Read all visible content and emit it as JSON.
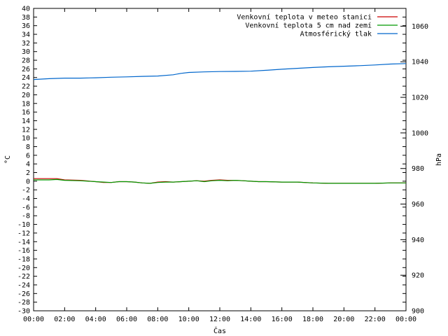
{
  "chart_data": {
    "type": "line",
    "title": "",
    "xlabel": "Čas",
    "ylabel_left": "°C",
    "ylabel_right": "hPa",
    "ylim_left": [
      -30,
      40
    ],
    "ylim_right": [
      900,
      1070
    ],
    "y_left_step": 2,
    "y_right_ticks": [
      900,
      920,
      940,
      960,
      980,
      1000,
      1020,
      1040,
      1060
    ],
    "x_hours": [
      0,
      24
    ],
    "x_tick_labels": [
      "00:00",
      "02:00",
      "04:00",
      "06:00",
      "08:00",
      "10:00",
      "12:00",
      "14:00",
      "16:00",
      "18:00",
      "20:00",
      "22:00",
      "00:00"
    ],
    "legend_position": "top-right",
    "grid": false,
    "series": [
      {
        "name": "Venkovní teplota v meteo stanici",
        "axis": "left",
        "color": "#cc0000",
        "points": [
          [
            0,
            0.6
          ],
          [
            1,
            0.6
          ],
          [
            1.5,
            0.6
          ],
          [
            2,
            0.3
          ],
          [
            3,
            0.2
          ],
          [
            4,
            -0.1
          ],
          [
            4.5,
            -0.3
          ],
          [
            5,
            -0.3
          ],
          [
            5.5,
            -0.1
          ],
          [
            6,
            -0.1
          ],
          [
            6.5,
            -0.2
          ],
          [
            7,
            -0.4
          ],
          [
            7.5,
            -0.5
          ],
          [
            8,
            -0.2
          ],
          [
            8.5,
            -0.1
          ],
          [
            9,
            -0.2
          ],
          [
            9.5,
            -0.1
          ],
          [
            10,
            0
          ],
          [
            10.5,
            0.1
          ],
          [
            11,
            0
          ],
          [
            11.5,
            0.2
          ],
          [
            12,
            0.3
          ],
          [
            12.5,
            0.2
          ],
          [
            13,
            0.2
          ],
          [
            13.5,
            0.1
          ],
          [
            14,
            0
          ],
          [
            14.5,
            -0.1
          ],
          [
            15,
            -0.1
          ],
          [
            16,
            -0.2
          ],
          [
            17,
            -0.2
          ],
          [
            18,
            -0.4
          ],
          [
            19,
            -0.5
          ],
          [
            20,
            -0.5
          ],
          [
            21,
            -0.5
          ],
          [
            22,
            -0.5
          ],
          [
            23,
            -0.4
          ],
          [
            24,
            -0.4
          ]
        ]
      },
      {
        "name": "Venkovní teplota 5 cm nad zemí",
        "axis": "left",
        "color": "#009900",
        "points": [
          [
            0,
            0.3
          ],
          [
            1,
            0.3
          ],
          [
            1.5,
            0.4
          ],
          [
            2,
            0.2
          ],
          [
            3,
            0.1
          ],
          [
            4,
            -0.1
          ],
          [
            4.5,
            -0.2
          ],
          [
            5,
            -0.3
          ],
          [
            5.5,
            -0.1
          ],
          [
            6,
            -0.1
          ],
          [
            6.5,
            -0.2
          ],
          [
            7,
            -0.4
          ],
          [
            7.5,
            -0.5
          ],
          [
            8,
            -0.3
          ],
          [
            8.5,
            -0.2
          ],
          [
            9,
            -0.2
          ],
          [
            9.5,
            -0.1
          ],
          [
            10,
            0
          ],
          [
            10.5,
            0.1
          ],
          [
            11,
            -0.1
          ],
          [
            11.5,
            0.1
          ],
          [
            12,
            0.2
          ],
          [
            12.5,
            0.1
          ],
          [
            13,
            0.2
          ],
          [
            13.5,
            0.1
          ],
          [
            14,
            0
          ],
          [
            14.5,
            -0.1
          ],
          [
            15,
            -0.1
          ],
          [
            16,
            -0.2
          ],
          [
            17,
            -0.2
          ],
          [
            18,
            -0.4
          ],
          [
            19,
            -0.5
          ],
          [
            20,
            -0.5
          ],
          [
            21,
            -0.5
          ],
          [
            22,
            -0.5
          ],
          [
            23,
            -0.4
          ],
          [
            24,
            -0.4
          ]
        ]
      },
      {
        "name": "Atmosférický tlak",
        "axis": "right",
        "color": "#0066cc",
        "points": [
          [
            0,
            1030
          ],
          [
            1,
            1030.5
          ],
          [
            2,
            1030.8
          ],
          [
            3,
            1030.8
          ],
          [
            4,
            1031
          ],
          [
            5,
            1031.3
          ],
          [
            6,
            1031.5
          ],
          [
            7,
            1031.8
          ],
          [
            8,
            1032
          ],
          [
            9,
            1032.7
          ],
          [
            9.5,
            1033.5
          ],
          [
            10,
            1034
          ],
          [
            11,
            1034.3
          ],
          [
            12,
            1034.5
          ],
          [
            13,
            1034.6
          ],
          [
            14,
            1034.7
          ],
          [
            15,
            1035.2
          ],
          [
            16,
            1035.8
          ],
          [
            17,
            1036.3
          ],
          [
            18,
            1036.8
          ],
          [
            19,
            1037.2
          ],
          [
            20,
            1037.5
          ],
          [
            21,
            1037.8
          ],
          [
            22,
            1038.2
          ],
          [
            23,
            1038.7
          ],
          [
            24,
            1039
          ]
        ]
      }
    ]
  }
}
